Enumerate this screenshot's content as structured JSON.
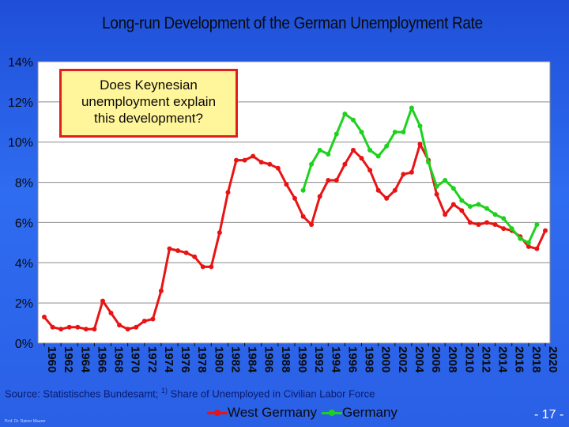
{
  "chart_data": {
    "type": "line",
    "title": "Long-run Development of the German Unemployment Rate",
    "ylim": [
      0,
      14
    ],
    "yticks": [
      0,
      2,
      4,
      6,
      8,
      10,
      12,
      14
    ],
    "ytick_format": "%",
    "xlim": [
      1960,
      2020
    ],
    "xticks": [
      1960,
      1962,
      1964,
      1966,
      1968,
      1970,
      1972,
      1974,
      1976,
      1978,
      1980,
      1982,
      1984,
      1986,
      1988,
      1990,
      1992,
      1994,
      1996,
      1998,
      2000,
      2002,
      2004,
      2006,
      2008,
      2010,
      2012,
      2014,
      2016,
      2018,
      2020
    ],
    "grid": true,
    "legend_position": "bottom",
    "series": [
      {
        "name": "West Germany",
        "color": "#e81414",
        "points": [
          [
            1960,
            1.3
          ],
          [
            1961,
            0.8
          ],
          [
            1962,
            0.7
          ],
          [
            1963,
            0.8
          ],
          [
            1964,
            0.8
          ],
          [
            1965,
            0.7
          ],
          [
            1966,
            0.7
          ],
          [
            1967,
            2.1
          ],
          [
            1968,
            1.5
          ],
          [
            1969,
            0.9
          ],
          [
            1970,
            0.7
          ],
          [
            1971,
            0.8
          ],
          [
            1972,
            1.1
          ],
          [
            1973,
            1.2
          ],
          [
            1974,
            2.6
          ],
          [
            1975,
            4.7
          ],
          [
            1976,
            4.6
          ],
          [
            1977,
            4.5
          ],
          [
            1978,
            4.3
          ],
          [
            1979,
            3.8
          ],
          [
            1980,
            3.8
          ],
          [
            1981,
            5.5
          ],
          [
            1982,
            7.5
          ],
          [
            1983,
            9.1
          ],
          [
            1984,
            9.1
          ],
          [
            1985,
            9.3
          ],
          [
            1986,
            9.0
          ],
          [
            1987,
            8.9
          ],
          [
            1988,
            8.7
          ],
          [
            1989,
            7.9
          ],
          [
            1990,
            7.2
          ],
          [
            1991,
            6.3
          ],
          [
            1992,
            5.9
          ],
          [
            1993,
            7.3
          ],
          [
            1994,
            8.1
          ],
          [
            1995,
            8.1
          ],
          [
            1996,
            8.9
          ],
          [
            1997,
            9.6
          ],
          [
            1998,
            9.2
          ],
          [
            1999,
            8.6
          ],
          [
            2000,
            7.6
          ],
          [
            2001,
            7.2
          ],
          [
            2002,
            7.6
          ],
          [
            2003,
            8.4
          ],
          [
            2004,
            8.5
          ],
          [
            2005,
            9.9
          ],
          [
            2006,
            9.1
          ],
          [
            2007,
            7.4
          ],
          [
            2008,
            6.4
          ],
          [
            2009,
            6.9
          ],
          [
            2010,
            6.6
          ],
          [
            2011,
            6.0
          ],
          [
            2012,
            5.9
          ],
          [
            2013,
            6.0
          ],
          [
            2014,
            5.9
          ],
          [
            2015,
            5.7
          ],
          [
            2016,
            5.6
          ],
          [
            2017,
            5.3
          ],
          [
            2018,
            4.8
          ],
          [
            2019,
            4.7
          ],
          [
            2020,
            5.6
          ]
        ]
      },
      {
        "name": "Germany",
        "color": "#1fd11f",
        "points": [
          [
            1991,
            7.6
          ],
          [
            1992,
            8.9
          ],
          [
            1993,
            9.6
          ],
          [
            1994,
            9.4
          ],
          [
            1995,
            10.4
          ],
          [
            1996,
            11.4
          ],
          [
            1997,
            11.1
          ],
          [
            1998,
            10.5
          ],
          [
            1999,
            9.6
          ],
          [
            2000,
            9.3
          ],
          [
            2001,
            9.8
          ],
          [
            2002,
            10.5
          ],
          [
            2003,
            10.5
          ],
          [
            2004,
            11.7
          ],
          [
            2005,
            10.8
          ],
          [
            2006,
            9.0
          ],
          [
            2007,
            7.8
          ],
          [
            2008,
            8.1
          ],
          [
            2009,
            7.7
          ],
          [
            2010,
            7.1
          ],
          [
            2011,
            6.8
          ],
          [
            2012,
            6.9
          ],
          [
            2013,
            6.7
          ],
          [
            2014,
            6.4
          ],
          [
            2015,
            6.2
          ],
          [
            2016,
            5.7
          ],
          [
            2017,
            5.2
          ],
          [
            2018,
            5.0
          ],
          [
            2019,
            5.9
          ]
        ]
      }
    ]
  },
  "annotation": {
    "text": "Does Keynesian\nunemployment explain\nthis development?"
  },
  "source": {
    "text": "Source: Statistisches Bundesamt;",
    "footnote_marker": "1)",
    "footnote_text": "Share of Unemployed in Civilian Labor Force"
  },
  "footer": {
    "author": "Prof. Dr. Rainer Maurer",
    "page": "- 17 -"
  }
}
